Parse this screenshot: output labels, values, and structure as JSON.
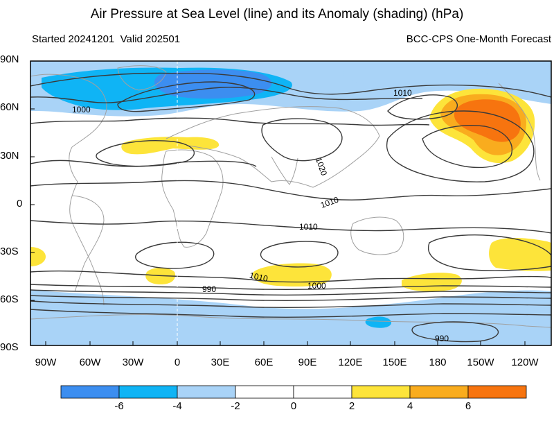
{
  "header": {
    "title": "Air Pressure at Sea Level (line) and its Anomaly (shading) (hPa)",
    "started": "Started 20241201",
    "valid": "Valid 202501",
    "model": "BCC-CPS One-Month Forecast"
  },
  "axes": {
    "lat_labels": [
      "90N",
      "60N",
      "30N",
      "0",
      "30S",
      "60S",
      "90S"
    ],
    "lon_labels": [
      "90W",
      "60W",
      "30W",
      "0",
      "30E",
      "60E",
      "90E",
      "120E",
      "150E",
      "180",
      "150W",
      "120W"
    ]
  },
  "contour_labels": [
    "1010",
    "1000",
    "1020",
    "1010",
    "1010",
    "990",
    "1010",
    "1000",
    "990"
  ],
  "colorbar": {
    "labels": [
      "-6",
      "-4",
      "-2",
      "0",
      "2",
      "4",
      "6"
    ],
    "colors": [
      "#3c8ef0",
      "#0fb4f5",
      "#a9d3f7",
      "#ffffff",
      "#ffffff",
      "#fde43a",
      "#f9ac1e",
      "#f7740f"
    ]
  },
  "colors": {
    "neg_strong": "#3c8ef0",
    "neg_mid": "#0fb4f5",
    "neg_light": "#a9d3f7",
    "pos_light": "#fde43a",
    "pos_mid": "#f9ac1e",
    "pos_strong": "#f7740f",
    "contour": "#3a3a3a",
    "coast": "#a0a0a0"
  }
}
